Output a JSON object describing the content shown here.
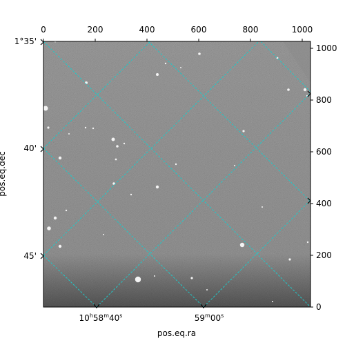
{
  "axes": {
    "xlabel": "pos.eq.ra",
    "ylabel": "pos.eq.dec",
    "top_ticks": [
      "0",
      "200",
      "400",
      "600",
      "800",
      "1000"
    ],
    "right_ticks": [
      "0",
      "200",
      "400",
      "600",
      "800",
      "1000"
    ],
    "ra_ticks": [
      {
        "h": "10",
        "m": "58",
        "s": "40"
      },
      {
        "m": "59",
        "s": "00"
      }
    ],
    "dec_ticks": [
      "1°35'",
      "40'",
      "45'"
    ]
  },
  "colors": {
    "grid": "#20c8c8",
    "background": "#ffffff"
  }
}
